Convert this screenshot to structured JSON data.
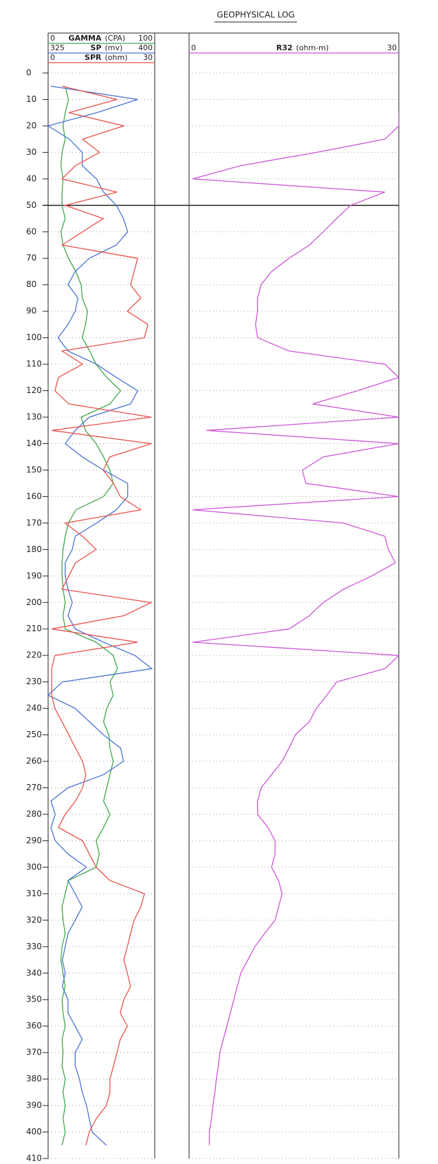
{
  "chart_data": {
    "type": "line",
    "title": "GEOPHYSICAL LOG",
    "ylim": [
      0,
      410
    ],
    "yticks": [
      0,
      10,
      20,
      30,
      40,
      50,
      60,
      70,
      80,
      90,
      100,
      110,
      120,
      130,
      140,
      150,
      160,
      170,
      180,
      190,
      200,
      210,
      220,
      230,
      240,
      250,
      260,
      270,
      280,
      290,
      300,
      310,
      320,
      330,
      340,
      350,
      360,
      370,
      380,
      390,
      400,
      410
    ],
    "grid": true,
    "reference_line": 50,
    "x": [
      5,
      10,
      15,
      20,
      25,
      30,
      35,
      40,
      45,
      50,
      55,
      60,
      65,
      70,
      75,
      80,
      85,
      90,
      95,
      100,
      105,
      110,
      115,
      120,
      125,
      130,
      135,
      140,
      145,
      150,
      155,
      160,
      165,
      170,
      175,
      180,
      185,
      190,
      195,
      200,
      205,
      210,
      215,
      220,
      225,
      230,
      235,
      240,
      245,
      250,
      255,
      260,
      265,
      270,
      275,
      280,
      285,
      290,
      295,
      300,
      305,
      310,
      315,
      320,
      325,
      330,
      335,
      340,
      345,
      350,
      355,
      360,
      365,
      370,
      375,
      380,
      385,
      390,
      395,
      400,
      405
    ],
    "series": [
      {
        "name": "GAMMA",
        "unit": "(CPA)",
        "color": "#3fa64a",
        "track": 0,
        "xlim": [
          0,
          100
        ],
        "values": [
          16,
          19,
          16,
          14,
          16,
          13,
          12,
          14,
          13,
          13,
          16,
          12,
          14,
          19,
          26,
          31,
          32,
          37,
          35,
          32,
          39,
          45,
          55,
          68,
          58,
          31,
          35,
          45,
          52,
          58,
          61,
          52,
          26,
          19,
          16,
          14,
          13,
          13,
          14,
          16,
          14,
          16,
          45,
          61,
          65,
          58,
          61,
          55,
          52,
          57,
          58,
          61,
          58,
          55,
          52,
          58,
          52,
          45,
          48,
          45,
          19,
          16,
          13,
          14,
          16,
          13,
          12,
          14,
          16,
          13,
          14,
          16,
          13,
          14,
          13,
          16,
          14,
          16,
          14,
          16,
          13
        ]
      },
      {
        "name": "SP",
        "unit": "(mv)",
        "color": "#4a72d0",
        "track": 0,
        "xlim": [
          325,
          400
        ],
        "values": [
          327,
          388,
          359,
          325,
          340,
          349,
          349,
          359,
          364,
          373,
          378,
          381,
          373,
          354,
          344,
          339,
          346,
          344,
          339,
          332,
          339,
          359,
          373,
          388,
          383,
          354,
          344,
          337,
          349,
          364,
          381,
          381,
          373,
          359,
          344,
          342,
          337,
          337,
          339,
          342,
          339,
          344,
          364,
          386,
          398,
          335,
          325,
          344,
          354,
          364,
          376,
          378,
          364,
          339,
          327,
          330,
          327,
          330,
          339,
          352,
          339,
          344,
          349,
          344,
          339,
          337,
          335,
          337,
          335,
          339,
          339,
          344,
          349,
          344,
          344,
          347,
          349,
          352,
          354,
          356,
          366
        ]
      },
      {
        "name": "SPR",
        "unit": "(ohm)",
        "color": "#e8504a",
        "track": 0,
        "xlim": [
          0,
          30
        ],
        "values": [
          3.9,
          19.4,
          5.8,
          21.3,
          9.7,
          14.5,
          7.7,
          3.9,
          19.4,
          4.8,
          15.5,
          9.7,
          3.9,
          25.2,
          24.2,
          23.2,
          26.1,
          22.3,
          28.1,
          27.1,
          3.9,
          9.7,
          2.9,
          1.9,
          5.8,
          29,
          1,
          29,
          17.4,
          15.5,
          18.4,
          20.3,
          26.1,
          4.8,
          9.7,
          13.5,
          7.7,
          5.8,
          3.9,
          29,
          21.3,
          1,
          25.2,
          1.9,
          1,
          1,
          1,
          1.9,
          3.9,
          5.8,
          7.7,
          9.7,
          10.6,
          9.7,
          7.7,
          4.8,
          2.9,
          9.7,
          11.6,
          13.5,
          17.4,
          27.1,
          26.1,
          24.2,
          23.2,
          22.3,
          21.3,
          22.3,
          23.2,
          21.3,
          20.3,
          22.3,
          20.3,
          19.4,
          18.4,
          17.4,
          17.4,
          16.4,
          13.5,
          11.6,
          10.6
        ]
      },
      {
        "name": "R32",
        "unit": "(ohm-m)",
        "color": "#cc55d8",
        "track": 1,
        "xlim": [
          0,
          30
        ],
        "values": [
          null,
          null,
          30,
          30,
          28,
          18.2,
          7.4,
          0.5,
          28,
          23.1,
          21.1,
          19.2,
          17.2,
          14.3,
          11.8,
          10.3,
          9.8,
          9.8,
          9.5,
          9.8,
          14.3,
          28,
          30,
          24.1,
          17.7,
          30,
          2.5,
          30,
          19.2,
          16.2,
          16.7,
          30,
          0.5,
          22.1,
          28,
          28.5,
          29.5,
          26.1,
          22.1,
          19.2,
          17.2,
          14.3,
          0.5,
          30,
          28,
          21.1,
          19.7,
          18.2,
          17.2,
          15.2,
          14.3,
          13.3,
          11.8,
          10.3,
          9.8,
          9.8,
          11.3,
          12.3,
          12.3,
          11.8,
          12.8,
          13.3,
          12.8,
          12.3,
          10.8,
          9.4,
          8.4,
          7.4,
          6.9,
          6.4,
          5.9,
          5.4,
          4.9,
          4.4,
          4.2,
          3.9,
          3.7,
          3.4,
          3.2,
          2.9,
          2.9
        ]
      }
    ]
  }
}
